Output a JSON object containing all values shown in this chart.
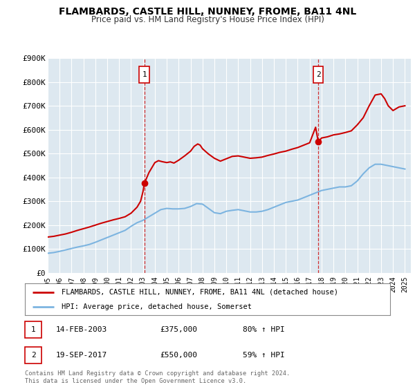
{
  "title": "FLAMBARDS, CASTLE HILL, NUNNEY, FROME, BA11 4NL",
  "subtitle": "Price paid vs. HM Land Registry's House Price Index (HPI)",
  "ylim": [
    0,
    900000
  ],
  "yticks": [
    0,
    100000,
    200000,
    300000,
    400000,
    500000,
    600000,
    700000,
    800000,
    900000
  ],
  "ytick_labels": [
    "£0",
    "£100K",
    "£200K",
    "£300K",
    "£400K",
    "£500K",
    "£600K",
    "£700K",
    "£800K",
    "£900K"
  ],
  "hpi_color": "#7cb4e0",
  "price_color": "#cc0000",
  "marker1_x": 2003.12,
  "marker1_y": 375000,
  "marker2_x": 2017.72,
  "marker2_y": 550000,
  "legend_label1": "FLAMBARDS, CASTLE HILL, NUNNEY, FROME, BA11 4NL (detached house)",
  "legend_label2": "HPI: Average price, detached house, Somerset",
  "note1_date": "14-FEB-2003",
  "note1_price": "£375,000",
  "note1_hpi": "80% ↑ HPI",
  "note2_date": "19-SEP-2017",
  "note2_price": "£550,000",
  "note2_hpi": "59% ↑ HPI",
  "footer": "Contains HM Land Registry data © Crown copyright and database right 2024.\nThis data is licensed under the Open Government Licence v3.0.",
  "bg_color": "#ffffff",
  "plot_bg_color": "#dde8f0",
  "grid_color": "#ffffff",
  "xlim_left": 1995.0,
  "xlim_right": 2025.5,
  "hpi_data_x": [
    1995.0,
    1995.5,
    1996.0,
    1996.5,
    1997.0,
    1997.5,
    1998.0,
    1998.5,
    1999.0,
    1999.5,
    2000.0,
    2000.5,
    2001.0,
    2001.5,
    2002.0,
    2002.5,
    2003.0,
    2003.5,
    2004.0,
    2004.5,
    2005.0,
    2005.5,
    2006.0,
    2006.5,
    2007.0,
    2007.5,
    2008.0,
    2008.5,
    2009.0,
    2009.5,
    2010.0,
    2010.5,
    2011.0,
    2011.5,
    2012.0,
    2012.5,
    2013.0,
    2013.5,
    2014.0,
    2014.5,
    2015.0,
    2015.5,
    2016.0,
    2016.5,
    2017.0,
    2017.5,
    2018.0,
    2018.5,
    2019.0,
    2019.5,
    2020.0,
    2020.5,
    2021.0,
    2021.5,
    2022.0,
    2022.5,
    2023.0,
    2023.5,
    2024.0,
    2024.5,
    2025.0
  ],
  "hpi_data_y": [
    82000,
    85000,
    90000,
    96000,
    102000,
    108000,
    113000,
    119000,
    128000,
    138000,
    148000,
    158000,
    168000,
    178000,
    195000,
    210000,
    220000,
    235000,
    250000,
    265000,
    270000,
    268000,
    268000,
    270000,
    278000,
    290000,
    288000,
    270000,
    252000,
    248000,
    258000,
    262000,
    265000,
    260000,
    255000,
    255000,
    258000,
    265000,
    275000,
    285000,
    295000,
    300000,
    305000,
    315000,
    325000,
    335000,
    345000,
    350000,
    355000,
    360000,
    360000,
    365000,
    385000,
    415000,
    440000,
    455000,
    455000,
    450000,
    445000,
    440000,
    435000
  ],
  "price_data_x": [
    1995.0,
    1995.5,
    1996.0,
    1996.5,
    1997.0,
    1997.5,
    1998.0,
    1998.5,
    1999.0,
    1999.5,
    2000.0,
    2000.5,
    2001.0,
    2001.5,
    2002.0,
    2002.5,
    2002.8,
    2003.0,
    2003.12,
    2003.5,
    2004.0,
    2004.3,
    2004.6,
    2005.0,
    2005.3,
    2005.6,
    2006.0,
    2006.5,
    2007.0,
    2007.3,
    2007.6,
    2007.8,
    2008.0,
    2008.5,
    2009.0,
    2009.5,
    2010.0,
    2010.5,
    2011.0,
    2011.5,
    2012.0,
    2012.5,
    2013.0,
    2013.5,
    2014.0,
    2014.5,
    2015.0,
    2015.5,
    2016.0,
    2016.5,
    2017.0,
    2017.5,
    2017.72,
    2018.0,
    2018.5,
    2019.0,
    2019.5,
    2020.0,
    2020.5,
    2021.0,
    2021.5,
    2022.0,
    2022.5,
    2023.0,
    2023.3,
    2023.6,
    2023.8,
    2024.0,
    2024.5,
    2025.0
  ],
  "price_data_y": [
    150000,
    153000,
    158000,
    163000,
    170000,
    178000,
    185000,
    192000,
    200000,
    208000,
    215000,
    222000,
    228000,
    235000,
    250000,
    275000,
    300000,
    340000,
    375000,
    420000,
    462000,
    470000,
    466000,
    462000,
    465000,
    460000,
    472000,
    490000,
    510000,
    530000,
    540000,
    535000,
    520000,
    498000,
    480000,
    468000,
    478000,
    488000,
    490000,
    485000,
    480000,
    482000,
    485000,
    492000,
    498000,
    505000,
    510000,
    518000,
    525000,
    535000,
    545000,
    610000,
    550000,
    565000,
    570000,
    578000,
    582000,
    588000,
    595000,
    620000,
    650000,
    700000,
    745000,
    750000,
    730000,
    700000,
    690000,
    680000,
    695000,
    700000
  ]
}
